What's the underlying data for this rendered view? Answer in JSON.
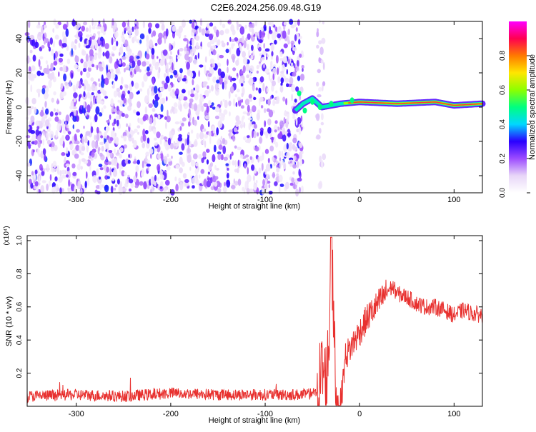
{
  "title": "C2E6.2024.256.09.48.G19",
  "chart_data": [
    {
      "type": "heatmap",
      "xlabel": "Height of straight line (km)",
      "ylabel": "Frequency (Hz)",
      "xlim": [
        -352,
        130
      ],
      "ylim": [
        -50,
        50
      ],
      "xticks": [
        -300,
        -200,
        -100,
        0,
        100
      ],
      "yticks": [
        -40,
        -20,
        0,
        20,
        40
      ],
      "colorbar": {
        "label": "Normalized spectral amplitude",
        "range": [
          0,
          1
        ],
        "ticks": [
          0.0,
          0.2,
          0.4,
          0.6,
          0.8
        ],
        "colormap": [
          "#ffffff",
          "#e8d6f8",
          "#9d4cff",
          "#2a00ff",
          "#00d8ff",
          "#00ff80",
          "#8dff00",
          "#ffe600",
          "#ff7a00",
          "#ff0050",
          "#ff00ff"
        ]
      },
      "regions": [
        {
          "name": "noise",
          "x_range": [
            -352,
            -60
          ],
          "freq_range": [
            -50,
            50
          ],
          "amplitude": "0.05-0.3 scattered"
        },
        {
          "name": "noise band",
          "x_range": [
            -45,
            -37
          ],
          "freq_range": [
            -50,
            50
          ],
          "amplitude": "0.05-0.15"
        },
        {
          "name": "tone",
          "x_range": [
            -68,
            130
          ],
          "frequency_hz": [
            [
              -68,
              -2
            ],
            [
              -60,
              2
            ],
            [
              -50,
              5
            ],
            [
              -40,
              0
            ],
            [
              -20,
              2
            ],
            [
              0,
              3
            ],
            [
              40,
              2
            ],
            [
              80,
              3
            ],
            [
              100,
              1
            ],
            [
              130,
              2
            ]
          ],
          "amplitude": "0.5-1.0"
        }
      ]
    },
    {
      "type": "line",
      "xlabel": "Height of straight line (km)",
      "ylabel": "SNR (10 * v/v)",
      "yscale_label": "(x10⁴)",
      "xlim": [
        -352,
        130
      ],
      "ylim": [
        0,
        1.03
      ],
      "xticks": [
        -300,
        -200,
        -100,
        0,
        100
      ],
      "yticks": [
        0.2,
        0.4,
        0.6,
        0.8,
        1.0
      ],
      "series": [
        {
          "color": "#e8312f",
          "x": [
            -352,
            -300,
            -250,
            -200,
            -150,
            -100,
            -60,
            -45,
            -40,
            -35,
            -32,
            -30,
            -28,
            -25,
            -20,
            -15,
            -10,
            0,
            10,
            20,
            30,
            35,
            40,
            50,
            60,
            70,
            80,
            90,
            100,
            110,
            120,
            130
          ],
          "y": [
            0.06,
            0.07,
            0.06,
            0.08,
            0.07,
            0.07,
            0.07,
            0.08,
            0.22,
            0.15,
            0.45,
            1.0,
            0.6,
            0.05,
            0.02,
            0.3,
            0.35,
            0.45,
            0.55,
            0.62,
            0.7,
            0.72,
            0.68,
            0.66,
            0.62,
            0.6,
            0.6,
            0.58,
            0.55,
            0.58,
            0.56,
            0.55
          ]
        }
      ]
    }
  ]
}
